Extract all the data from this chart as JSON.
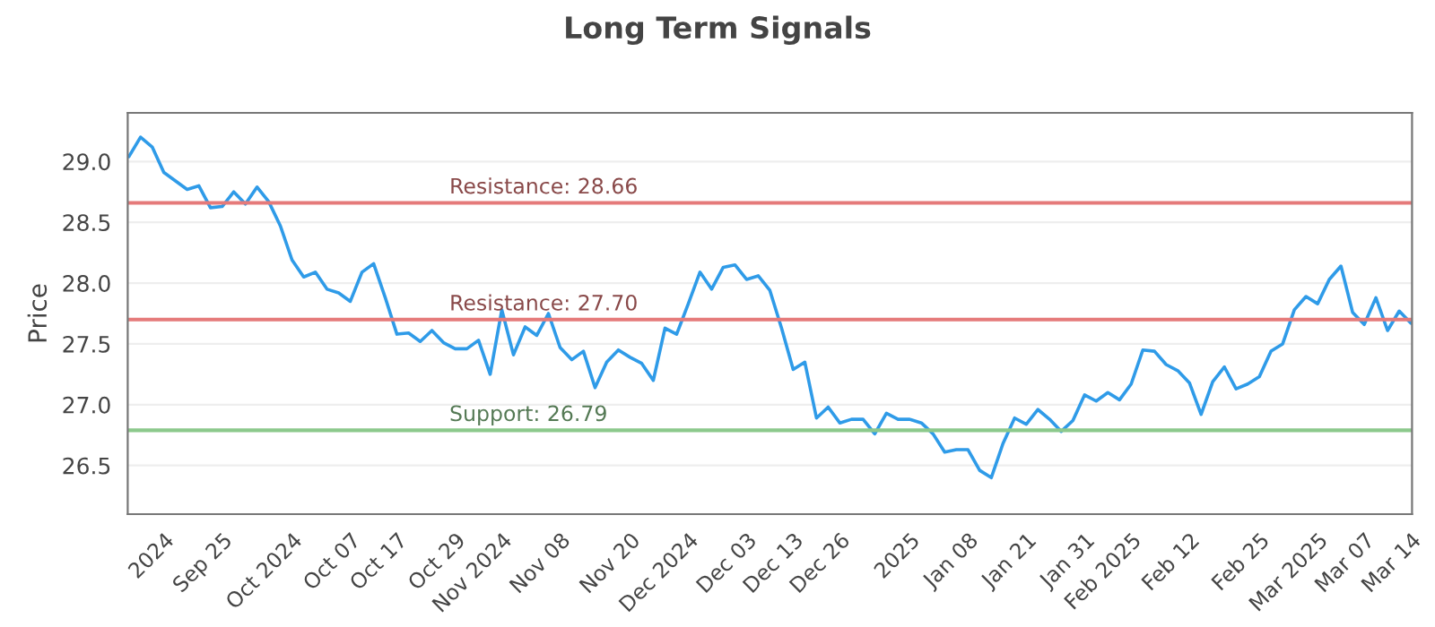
{
  "chart_data": {
    "type": "line",
    "title": "Long Term Signals",
    "ylabel": "Price",
    "categories": [
      null,
      null,
      null,
      "2024",
      null,
      null,
      null,
      null,
      "Sep 25",
      null,
      null,
      null,
      null,
      null,
      "Oct 2024",
      null,
      null,
      null,
      null,
      "Oct 07",
      null,
      null,
      null,
      "Oct 17",
      null,
      null,
      null,
      null,
      "Oct 29",
      null,
      null,
      null,
      "Nov 2024",
      null,
      null,
      null,
      null,
      "Nov 08",
      null,
      null,
      null,
      null,
      null,
      "Nov 20",
      null,
      null,
      null,
      null,
      "Dec 2024",
      null,
      null,
      null,
      null,
      "Dec 03",
      null,
      null,
      null,
      "Dec 13",
      null,
      null,
      null,
      "Dec 26",
      null,
      null,
      null,
      null,
      null,
      "2025",
      null,
      null,
      null,
      null,
      "Jan 08",
      null,
      null,
      null,
      null,
      "Jan 21",
      null,
      null,
      null,
      null,
      "Jan 31",
      null,
      null,
      null,
      "Feb 2025",
      null,
      null,
      null,
      null,
      "Feb 12",
      null,
      null,
      null,
      null,
      null,
      "Feb 25",
      null,
      null,
      null,
      null,
      "Mar 2025",
      null,
      null,
      null,
      "Mar 07",
      null,
      null,
      null,
      "Mar 14"
    ],
    "series": [
      {
        "color": "#2f9be8",
        "values": [
          29.04,
          29.2,
          29.12,
          28.91,
          28.84,
          28.77,
          28.8,
          28.62,
          28.63,
          28.75,
          28.65,
          28.79,
          28.67,
          28.47,
          28.19,
          28.05,
          28.09,
          27.95,
          27.92,
          27.85,
          28.09,
          28.16,
          27.88,
          27.58,
          27.59,
          27.52,
          27.61,
          27.51,
          27.46,
          27.46,
          27.53,
          27.25,
          27.78,
          27.41,
          27.64,
          27.57,
          27.75,
          27.47,
          27.37,
          27.44,
          27.14,
          27.35,
          27.45,
          27.39,
          27.34,
          27.2,
          27.63,
          27.58,
          27.83,
          28.09,
          27.95,
          28.13,
          28.15,
          28.03,
          28.06,
          27.94,
          27.63,
          27.29,
          27.35,
          26.89,
          26.98,
          26.85,
          26.88,
          26.88,
          26.76,
          26.93,
          26.88,
          26.88,
          26.85,
          26.76,
          26.61,
          26.63,
          26.63,
          26.46,
          26.4,
          26.68,
          26.89,
          26.84,
          26.96,
          26.88,
          26.78,
          26.87,
          27.08,
          27.03,
          27.1,
          27.04,
          27.17,
          27.45,
          27.44,
          27.33,
          27.28,
          27.18,
          26.92,
          27.19,
          27.31,
          27.13,
          27.17,
          27.23,
          27.44,
          27.5,
          27.78,
          27.89,
          27.83,
          28.03,
          28.14,
          27.76,
          27.66,
          27.88,
          27.61,
          27.77,
          27.67
        ]
      }
    ],
    "ylim": [
      26.1,
      29.4
    ],
    "yticks": [
      {
        "value": 26.5,
        "label": "26.5"
      },
      {
        "value": 27.0,
        "label": "27.0"
      },
      {
        "value": 27.5,
        "label": "27.5"
      },
      {
        "value": 28.0,
        "label": "28.0"
      },
      {
        "value": 28.5,
        "label": "28.5"
      },
      {
        "value": 29.0,
        "label": "29.0"
      }
    ],
    "ref_lines": [
      {
        "axis": "y",
        "value": 28.66,
        "label": "Resistance: 28.66",
        "color": "#e57a7a"
      },
      {
        "axis": "y",
        "value": 27.7,
        "label": "Resistance: 27.70",
        "color": "#e57a7a"
      },
      {
        "axis": "y",
        "value": 26.79,
        "label": "Support: 26.79",
        "color": "#8cc98c"
      }
    ],
    "grid": "y",
    "marker": "none",
    "line_style": "solid"
  }
}
